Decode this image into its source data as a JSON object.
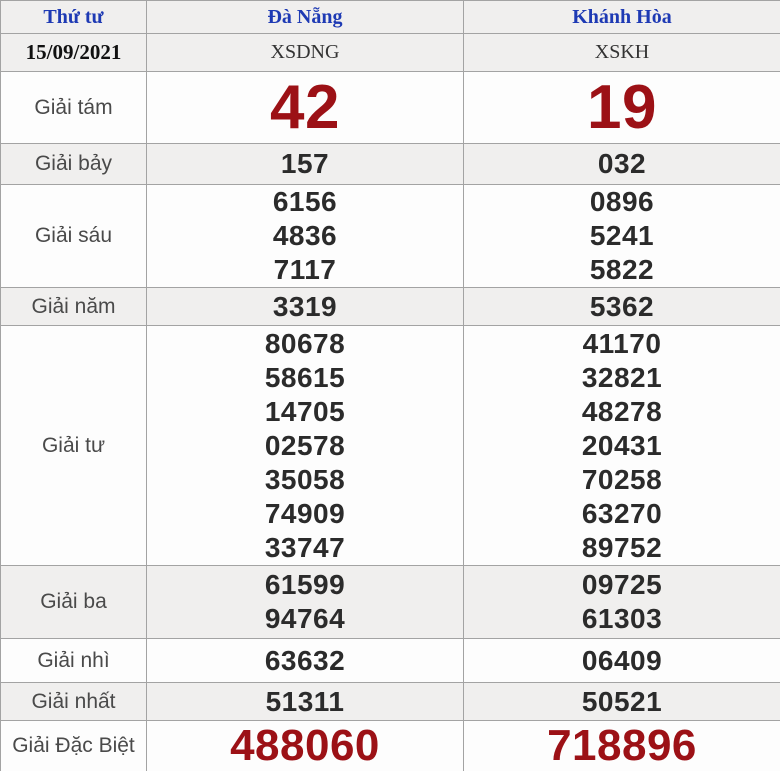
{
  "table": {
    "header": {
      "weekday": "Thứ tư",
      "danang": "Đà Nẵng",
      "khanhhoa": "Khánh Hòa"
    },
    "subheader": {
      "date": "15/09/2021",
      "danang_code": "XSDNG",
      "khanhhoa_code": "XSKH"
    },
    "rows": [
      {
        "label": "Giải tám",
        "emphasis": "large-red",
        "danang": [
          "42"
        ],
        "khanhhoa": [
          "19"
        ]
      },
      {
        "label": "Giải bảy",
        "emphasis": "none",
        "danang": [
          "157"
        ],
        "khanhhoa": [
          "032"
        ]
      },
      {
        "label": "Giải sáu",
        "emphasis": "none",
        "danang": [
          "6156",
          "4836",
          "7117"
        ],
        "khanhhoa": [
          "0896",
          "5241",
          "5822"
        ]
      },
      {
        "label": "Giải năm",
        "emphasis": "none",
        "danang": [
          "3319"
        ],
        "khanhhoa": [
          "5362"
        ]
      },
      {
        "label": "Giải tư",
        "emphasis": "none",
        "danang": [
          "80678",
          "58615",
          "14705",
          "02578",
          "35058",
          "74909",
          "33747"
        ],
        "khanhhoa": [
          "41170",
          "32821",
          "48278",
          "20431",
          "70258",
          "63270",
          "89752"
        ]
      },
      {
        "label": "Giải ba",
        "emphasis": "none",
        "danang": [
          "61599",
          "94764"
        ],
        "khanhhoa": [
          "09725",
          "61303"
        ]
      },
      {
        "label": "Giải nhì",
        "emphasis": "none",
        "danang": [
          "63632"
        ],
        "khanhhoa": [
          "06409"
        ]
      },
      {
        "label": "Giải nhất",
        "emphasis": "none",
        "danang": [
          "51311"
        ],
        "khanhhoa": [
          "50521"
        ]
      },
      {
        "label": "Giải Đặc Biệt",
        "emphasis": "medium-red",
        "danang": [
          "488060"
        ],
        "khanhhoa": [
          "718896"
        ]
      }
    ]
  },
  "colors": {
    "header_blue": "#1e3ab4",
    "highlight_red": "#9c1116",
    "row_gray": "#f0efee",
    "row_white": "#fdfdfd",
    "number_dark": "#2b2b2b"
  }
}
